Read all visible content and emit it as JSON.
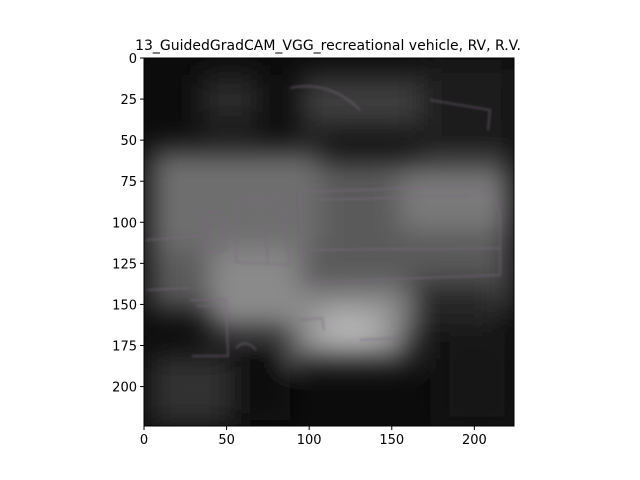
{
  "figure": {
    "title": "13_GuidedGradCAM_VGG_recreational vehicle, RV, R.V."
  },
  "axes": {
    "x_range": [
      0,
      224
    ],
    "y_range": [
      0,
      224
    ],
    "y_inverted": true,
    "x_ticks": [
      {
        "value": 0,
        "label": "0"
      },
      {
        "value": 50,
        "label": "50"
      },
      {
        "value": 100,
        "label": "100"
      },
      {
        "value": 150,
        "label": "150"
      },
      {
        "value": 200,
        "label": "200"
      }
    ],
    "y_ticks": [
      {
        "value": 0,
        "label": "0"
      },
      {
        "value": 25,
        "label": "25"
      },
      {
        "value": 50,
        "label": "50"
      },
      {
        "value": 75,
        "label": "75"
      },
      {
        "value": 100,
        "label": "100"
      },
      {
        "value": 125,
        "label": "125"
      },
      {
        "value": 150,
        "label": "150"
      },
      {
        "value": 175,
        "label": "175"
      },
      {
        "value": 200,
        "label": "200"
      }
    ]
  },
  "image": {
    "subject": "recreational-vehicle",
    "colors": {
      "dark": "#0a0a0a",
      "mid": "#5a5a5a",
      "bright": "#c8c8c8",
      "edge_tint": "#7a5a78"
    }
  }
}
